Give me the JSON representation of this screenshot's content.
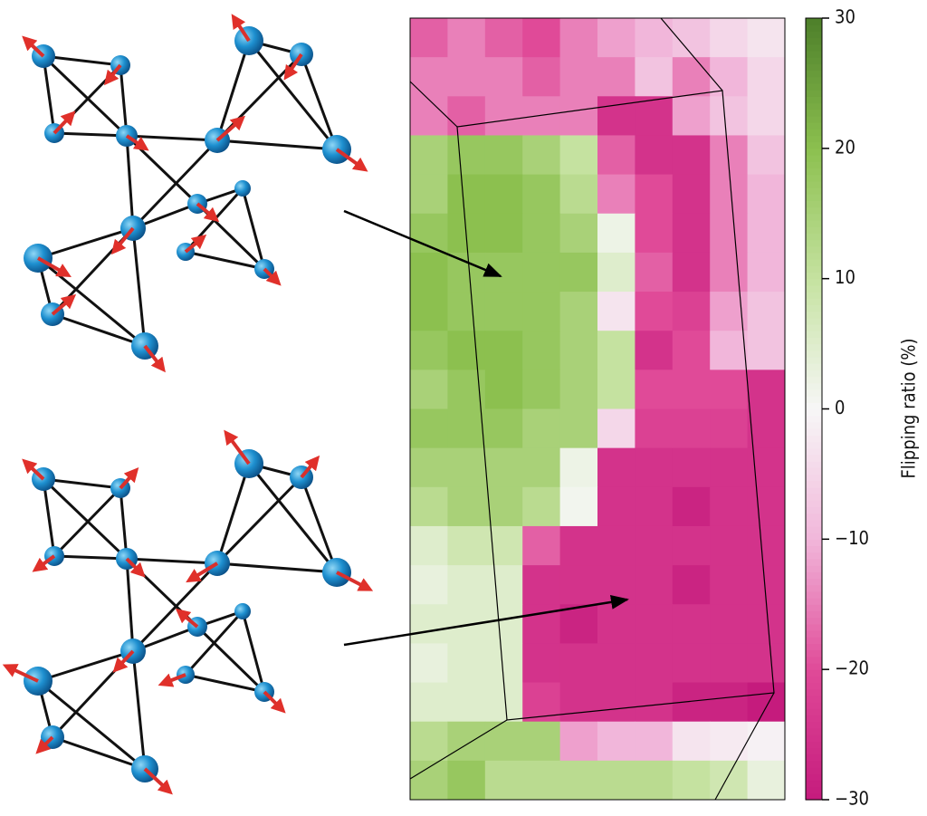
{
  "chart_data": {
    "type": "heatmap",
    "colormap": "PiYG",
    "label": "Flipping ratio (%)",
    "clim": [
      -30,
      30
    ],
    "cticks": [
      {
        "value": -30,
        "label": "−30"
      },
      {
        "value": -20,
        "label": "−20"
      },
      {
        "value": -10,
        "label": "−10"
      },
      0,
      10,
      20,
      30
    ],
    "values": [
      [
        -18,
        -15,
        -18,
        -20,
        -15,
        -12,
        -10,
        -8,
        -5,
        -3
      ],
      [
        -15,
        -15,
        -15,
        -18,
        -15,
        -15,
        -8,
        -15,
        -10,
        -5
      ],
      [
        -15,
        -18,
        -15,
        -15,
        -15,
        -25,
        -25,
        -12,
        -8,
        -5
      ],
      [
        15,
        18,
        18,
        15,
        10,
        -18,
        -25,
        -25,
        -15,
        -8
      ],
      [
        15,
        20,
        20,
        18,
        12,
        -15,
        -20,
        -25,
        -15,
        -10
      ],
      [
        18,
        20,
        20,
        18,
        15,
        2,
        -20,
        -25,
        -15,
        -10
      ],
      [
        20,
        18,
        18,
        18,
        18,
        5,
        -18,
        -25,
        -15,
        -10
      ],
      [
        20,
        18,
        18,
        18,
        15,
        -3,
        -20,
        -22,
        -12,
        -8
      ],
      [
        18,
        20,
        20,
        18,
        15,
        10,
        -25,
        -20,
        -10,
        -8
      ],
      [
        15,
        18,
        20,
        18,
        15,
        10,
        -20,
        -20,
        -20,
        -25
      ],
      [
        18,
        18,
        18,
        15,
        15,
        -5,
        -22,
        -22,
        -22,
        -25
      ],
      [
        15,
        15,
        15,
        15,
        2,
        -25,
        -25,
        -25,
        -25,
        -25
      ],
      [
        12,
        15,
        15,
        12,
        1,
        -25,
        -25,
        -28,
        -25,
        -25
      ],
      [
        5,
        8,
        8,
        -18,
        -25,
        -25,
        -25,
        -25,
        -25,
        -25
      ],
      [
        3,
        5,
        5,
        -25,
        -25,
        -25,
        -25,
        -28,
        -25,
        -25
      ],
      [
        5,
        5,
        5,
        -25,
        -28,
        -25,
        -25,
        -25,
        -25,
        -25
      ],
      [
        3,
        5,
        5,
        -25,
        -25,
        -25,
        -25,
        -25,
        -25,
        -25
      ],
      [
        5,
        5,
        5,
        -22,
        -25,
        -25,
        -25,
        -28,
        -28,
        -30
      ],
      [
        12,
        15,
        15,
        15,
        -12,
        -10,
        -10,
        -3,
        -2,
        -1
      ],
      [
        15,
        18,
        12,
        12,
        12,
        12,
        12,
        10,
        8,
        3
      ]
    ]
  }
}
